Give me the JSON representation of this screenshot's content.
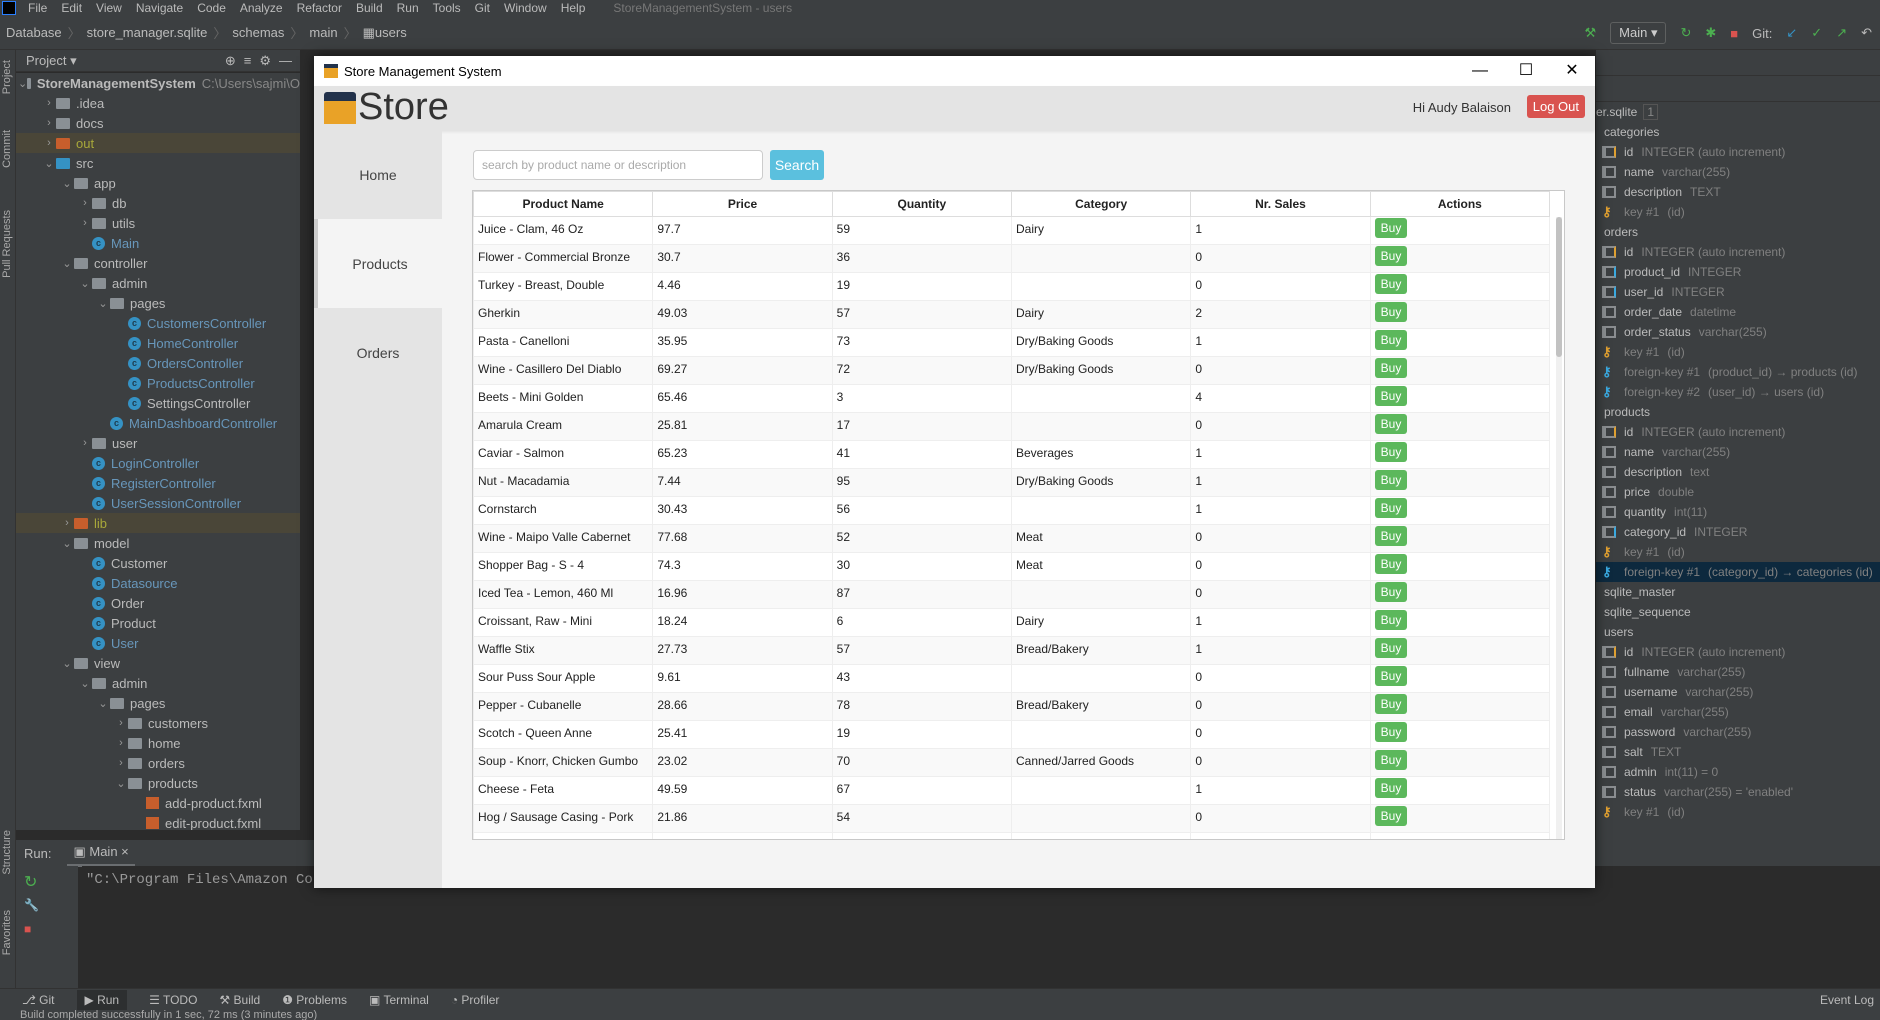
{
  "ide": {
    "menu": [
      "File",
      "Edit",
      "View",
      "Navigate",
      "Code",
      "Analyze",
      "Refactor",
      "Build",
      "Run",
      "Tools",
      "Git",
      "Window",
      "Help"
    ],
    "window_title": "StoreManagementSystem - users",
    "breadcrumb": [
      "Database",
      "store_manager.sqlite",
      "schemas",
      "main",
      "users"
    ],
    "run_config": "Main",
    "git_label": "Git:",
    "project_label": "Project",
    "side_tabs": [
      "Project",
      "Commit",
      "Pull Requests",
      "Structure",
      "Favorites"
    ],
    "tree": [
      {
        "l": 0,
        "t": "StoreManagementSystem",
        "hint": "C:\\Users\\sajmi\\O",
        "k": "root",
        "o": true
      },
      {
        "l": 1,
        "t": ".idea",
        "k": "folder"
      },
      {
        "l": 1,
        "t": "docs",
        "k": "folder"
      },
      {
        "l": 1,
        "t": "out",
        "k": "out",
        "hl": true
      },
      {
        "l": 1,
        "t": "src",
        "k": "src",
        "o": true
      },
      {
        "l": 2,
        "t": "app",
        "k": "pkg",
        "o": true
      },
      {
        "l": 3,
        "t": "db",
        "k": "pkg"
      },
      {
        "l": 3,
        "t": "utils",
        "k": "pkg"
      },
      {
        "l": 3,
        "t": "Main",
        "k": "class",
        "c": "blue"
      },
      {
        "l": 2,
        "t": "controller",
        "k": "pkg",
        "o": true
      },
      {
        "l": 3,
        "t": "admin",
        "k": "pkg",
        "o": true
      },
      {
        "l": 4,
        "t": "pages",
        "k": "pkg",
        "o": true
      },
      {
        "l": 5,
        "t": "CustomersController",
        "k": "class",
        "c": "blue"
      },
      {
        "l": 5,
        "t": "HomeController",
        "k": "class",
        "c": "blue"
      },
      {
        "l": 5,
        "t": "OrdersController",
        "k": "class",
        "c": "blue"
      },
      {
        "l": 5,
        "t": "ProductsController",
        "k": "class",
        "c": "blue"
      },
      {
        "l": 5,
        "t": "SettingsController",
        "k": "class"
      },
      {
        "l": 4,
        "t": "MainDashboardController",
        "k": "class",
        "c": "blue"
      },
      {
        "l": 3,
        "t": "user",
        "k": "pkg"
      },
      {
        "l": 3,
        "t": "LoginController",
        "k": "class",
        "c": "blue"
      },
      {
        "l": 3,
        "t": "RegisterController",
        "k": "class",
        "c": "blue"
      },
      {
        "l": 3,
        "t": "UserSessionController",
        "k": "class",
        "c": "blue"
      },
      {
        "l": 2,
        "t": "lib",
        "k": "out",
        "hl": true
      },
      {
        "l": 2,
        "t": "model",
        "k": "pkg",
        "o": true
      },
      {
        "l": 3,
        "t": "Customer",
        "k": "class"
      },
      {
        "l": 3,
        "t": "Datasource",
        "k": "class",
        "c": "blue"
      },
      {
        "l": 3,
        "t": "Order",
        "k": "class"
      },
      {
        "l": 3,
        "t": "Product",
        "k": "class"
      },
      {
        "l": 3,
        "t": "User",
        "k": "class",
        "c": "blue"
      },
      {
        "l": 2,
        "t": "view",
        "k": "pkg",
        "o": true
      },
      {
        "l": 3,
        "t": "admin",
        "k": "pkg",
        "o": true
      },
      {
        "l": 4,
        "t": "pages",
        "k": "pkg",
        "o": true
      },
      {
        "l": 5,
        "t": "customers",
        "k": "pkg"
      },
      {
        "l": 5,
        "t": "home",
        "k": "pkg"
      },
      {
        "l": 5,
        "t": "orders",
        "k": "pkg"
      },
      {
        "l": 5,
        "t": "products",
        "k": "pkg",
        "o": true
      },
      {
        "l": 6,
        "t": "add-product.fxml",
        "k": "fxml"
      },
      {
        "l": 6,
        "t": "edit-product.fxml",
        "k": "fxml"
      }
    ],
    "run_label": "Run:",
    "run_tab": "Main",
    "console_text": "\"C:\\Program Files\\Amazon Corr",
    "bottom_tabs": [
      "Git",
      "Run",
      "TODO",
      "Build",
      "Problems",
      "Terminal",
      "Profiler"
    ],
    "event_log": "Event Log",
    "status": "Build completed successfully in 1 sec, 72 ms (3 minutes ago)",
    "db_title": "er.sqlite",
    "db_badge": "1",
    "db_tree": [
      {
        "k": "table",
        "t": "categories"
      },
      {
        "k": "pk",
        "t": "id",
        "y": "INTEGER (auto increment)"
      },
      {
        "k": "col",
        "t": "name",
        "y": "varchar(255)"
      },
      {
        "k": "col",
        "t": "description",
        "y": "TEXT"
      },
      {
        "k": "key",
        "t": "key #1",
        "y": "(id)"
      },
      {
        "k": "table",
        "t": "orders"
      },
      {
        "k": "pk",
        "t": "id",
        "y": "INTEGER (auto increment)"
      },
      {
        "k": "fk",
        "t": "product_id",
        "y": "INTEGER"
      },
      {
        "k": "fk",
        "t": "user_id",
        "y": "INTEGER"
      },
      {
        "k": "col",
        "t": "order_date",
        "y": "datetime"
      },
      {
        "k": "col",
        "t": "order_status",
        "y": "varchar(255)"
      },
      {
        "k": "key",
        "t": "key #1",
        "y": "(id)"
      },
      {
        "k": "fkey",
        "t": "foreign-key #1",
        "y": "(product_id) → products (id)"
      },
      {
        "k": "fkey",
        "t": "foreign-key #2",
        "y": "(user_id) → users (id)"
      },
      {
        "k": "table",
        "t": "products"
      },
      {
        "k": "pk",
        "t": "id",
        "y": "INTEGER (auto increment)"
      },
      {
        "k": "col",
        "t": "name",
        "y": "varchar(255)"
      },
      {
        "k": "col",
        "t": "description",
        "y": "text"
      },
      {
        "k": "col",
        "t": "price",
        "y": "double"
      },
      {
        "k": "col",
        "t": "quantity",
        "y": "int(11)"
      },
      {
        "k": "fk",
        "t": "category_id",
        "y": "INTEGER"
      },
      {
        "k": "key",
        "t": "key #1",
        "y": "(id)"
      },
      {
        "k": "fkey",
        "t": "foreign-key #1",
        "y": "(category_id) → categories (id)",
        "sel": true
      },
      {
        "k": "table",
        "t": "sqlite_master"
      },
      {
        "k": "table",
        "t": "sqlite_sequence"
      },
      {
        "k": "table",
        "t": "users"
      },
      {
        "k": "pk",
        "t": "id",
        "y": "INTEGER (auto increment)"
      },
      {
        "k": "col",
        "t": "fullname",
        "y": "varchar(255)"
      },
      {
        "k": "col",
        "t": "username",
        "y": "varchar(255)"
      },
      {
        "k": "col",
        "t": "email",
        "y": "varchar(255)"
      },
      {
        "k": "col",
        "t": "password",
        "y": "varchar(255)"
      },
      {
        "k": "col",
        "t": "salt",
        "y": "TEXT"
      },
      {
        "k": "col",
        "t": "admin",
        "y": "int(11) = 0"
      },
      {
        "k": "col",
        "t": "status",
        "y": "varchar(255) = 'enabled'"
      },
      {
        "k": "key",
        "t": "key #1",
        "y": "(id)"
      }
    ]
  },
  "app": {
    "title": "Store Management System",
    "brand": "Store",
    "greeting": "Hi Audy Balaison",
    "logout": "Log Out",
    "nav": [
      {
        "label": "Home"
      },
      {
        "label": "Products",
        "active": true
      },
      {
        "label": "Orders"
      }
    ],
    "search_placeholder": "search by product name or description",
    "search_value": "",
    "search_button": "Search",
    "columns": [
      "Product Name",
      "Price",
      "Quantity",
      "Category",
      "Nr. Sales",
      "Actions"
    ],
    "buy_label": "Buy",
    "rows": [
      [
        "Juice - Clam, 46 Oz",
        "97.7",
        "59",
        "Dairy",
        "1"
      ],
      [
        "Flower - Commercial Bronze",
        "30.7",
        "36",
        "",
        "0"
      ],
      [
        "Turkey - Breast, Double",
        "4.46",
        "19",
        "",
        "0"
      ],
      [
        "Gherkin",
        "49.03",
        "57",
        "Dairy",
        "2"
      ],
      [
        "Pasta - Canelloni",
        "35.95",
        "73",
        "Dry/Baking Goods",
        "1"
      ],
      [
        "Wine - Casillero Del Diablo",
        "69.27",
        "72",
        "Dry/Baking Goods",
        "0"
      ],
      [
        "Beets - Mini Golden",
        "65.46",
        "3",
        "",
        "4"
      ],
      [
        "Amarula Cream",
        "25.81",
        "17",
        "",
        "0"
      ],
      [
        "Caviar - Salmon",
        "65.23",
        "41",
        "Beverages",
        "1"
      ],
      [
        "Nut - Macadamia",
        "7.44",
        "95",
        "Dry/Baking Goods",
        "1"
      ],
      [
        "Cornstarch",
        "30.43",
        "56",
        "",
        "1"
      ],
      [
        "Wine - Maipo Valle Cabernet",
        "77.68",
        "52",
        "Meat",
        "0"
      ],
      [
        "Shopper Bag - S - 4",
        "74.3",
        "30",
        "Meat",
        "0"
      ],
      [
        "Iced Tea - Lemon, 460 Ml",
        "16.96",
        "87",
        "",
        "0"
      ],
      [
        "Croissant, Raw - Mini",
        "18.24",
        "6",
        "Dairy",
        "1"
      ],
      [
        "Waffle Stix",
        "27.73",
        "57",
        "Bread/Bakery",
        "1"
      ],
      [
        "Sour Puss Sour Apple",
        "9.61",
        "43",
        "",
        "0"
      ],
      [
        "Pepper - Cubanelle",
        "28.66",
        "78",
        "Bread/Bakery",
        "0"
      ],
      [
        "Scotch - Queen Anne",
        "25.41",
        "19",
        "",
        "0"
      ],
      [
        "Soup - Knorr, Chicken Gumbo",
        "23.02",
        "70",
        "Canned/Jarred Goods",
        "0"
      ],
      [
        "Cheese - Feta",
        "49.59",
        "67",
        "",
        "1"
      ],
      [
        "Hog / Sausage Casing - Pork",
        "21.86",
        "54",
        "",
        "0"
      ]
    ],
    "colors": {
      "buy": "#5cb85c",
      "search": "#5bc0de",
      "logout": "#d9534f"
    }
  }
}
